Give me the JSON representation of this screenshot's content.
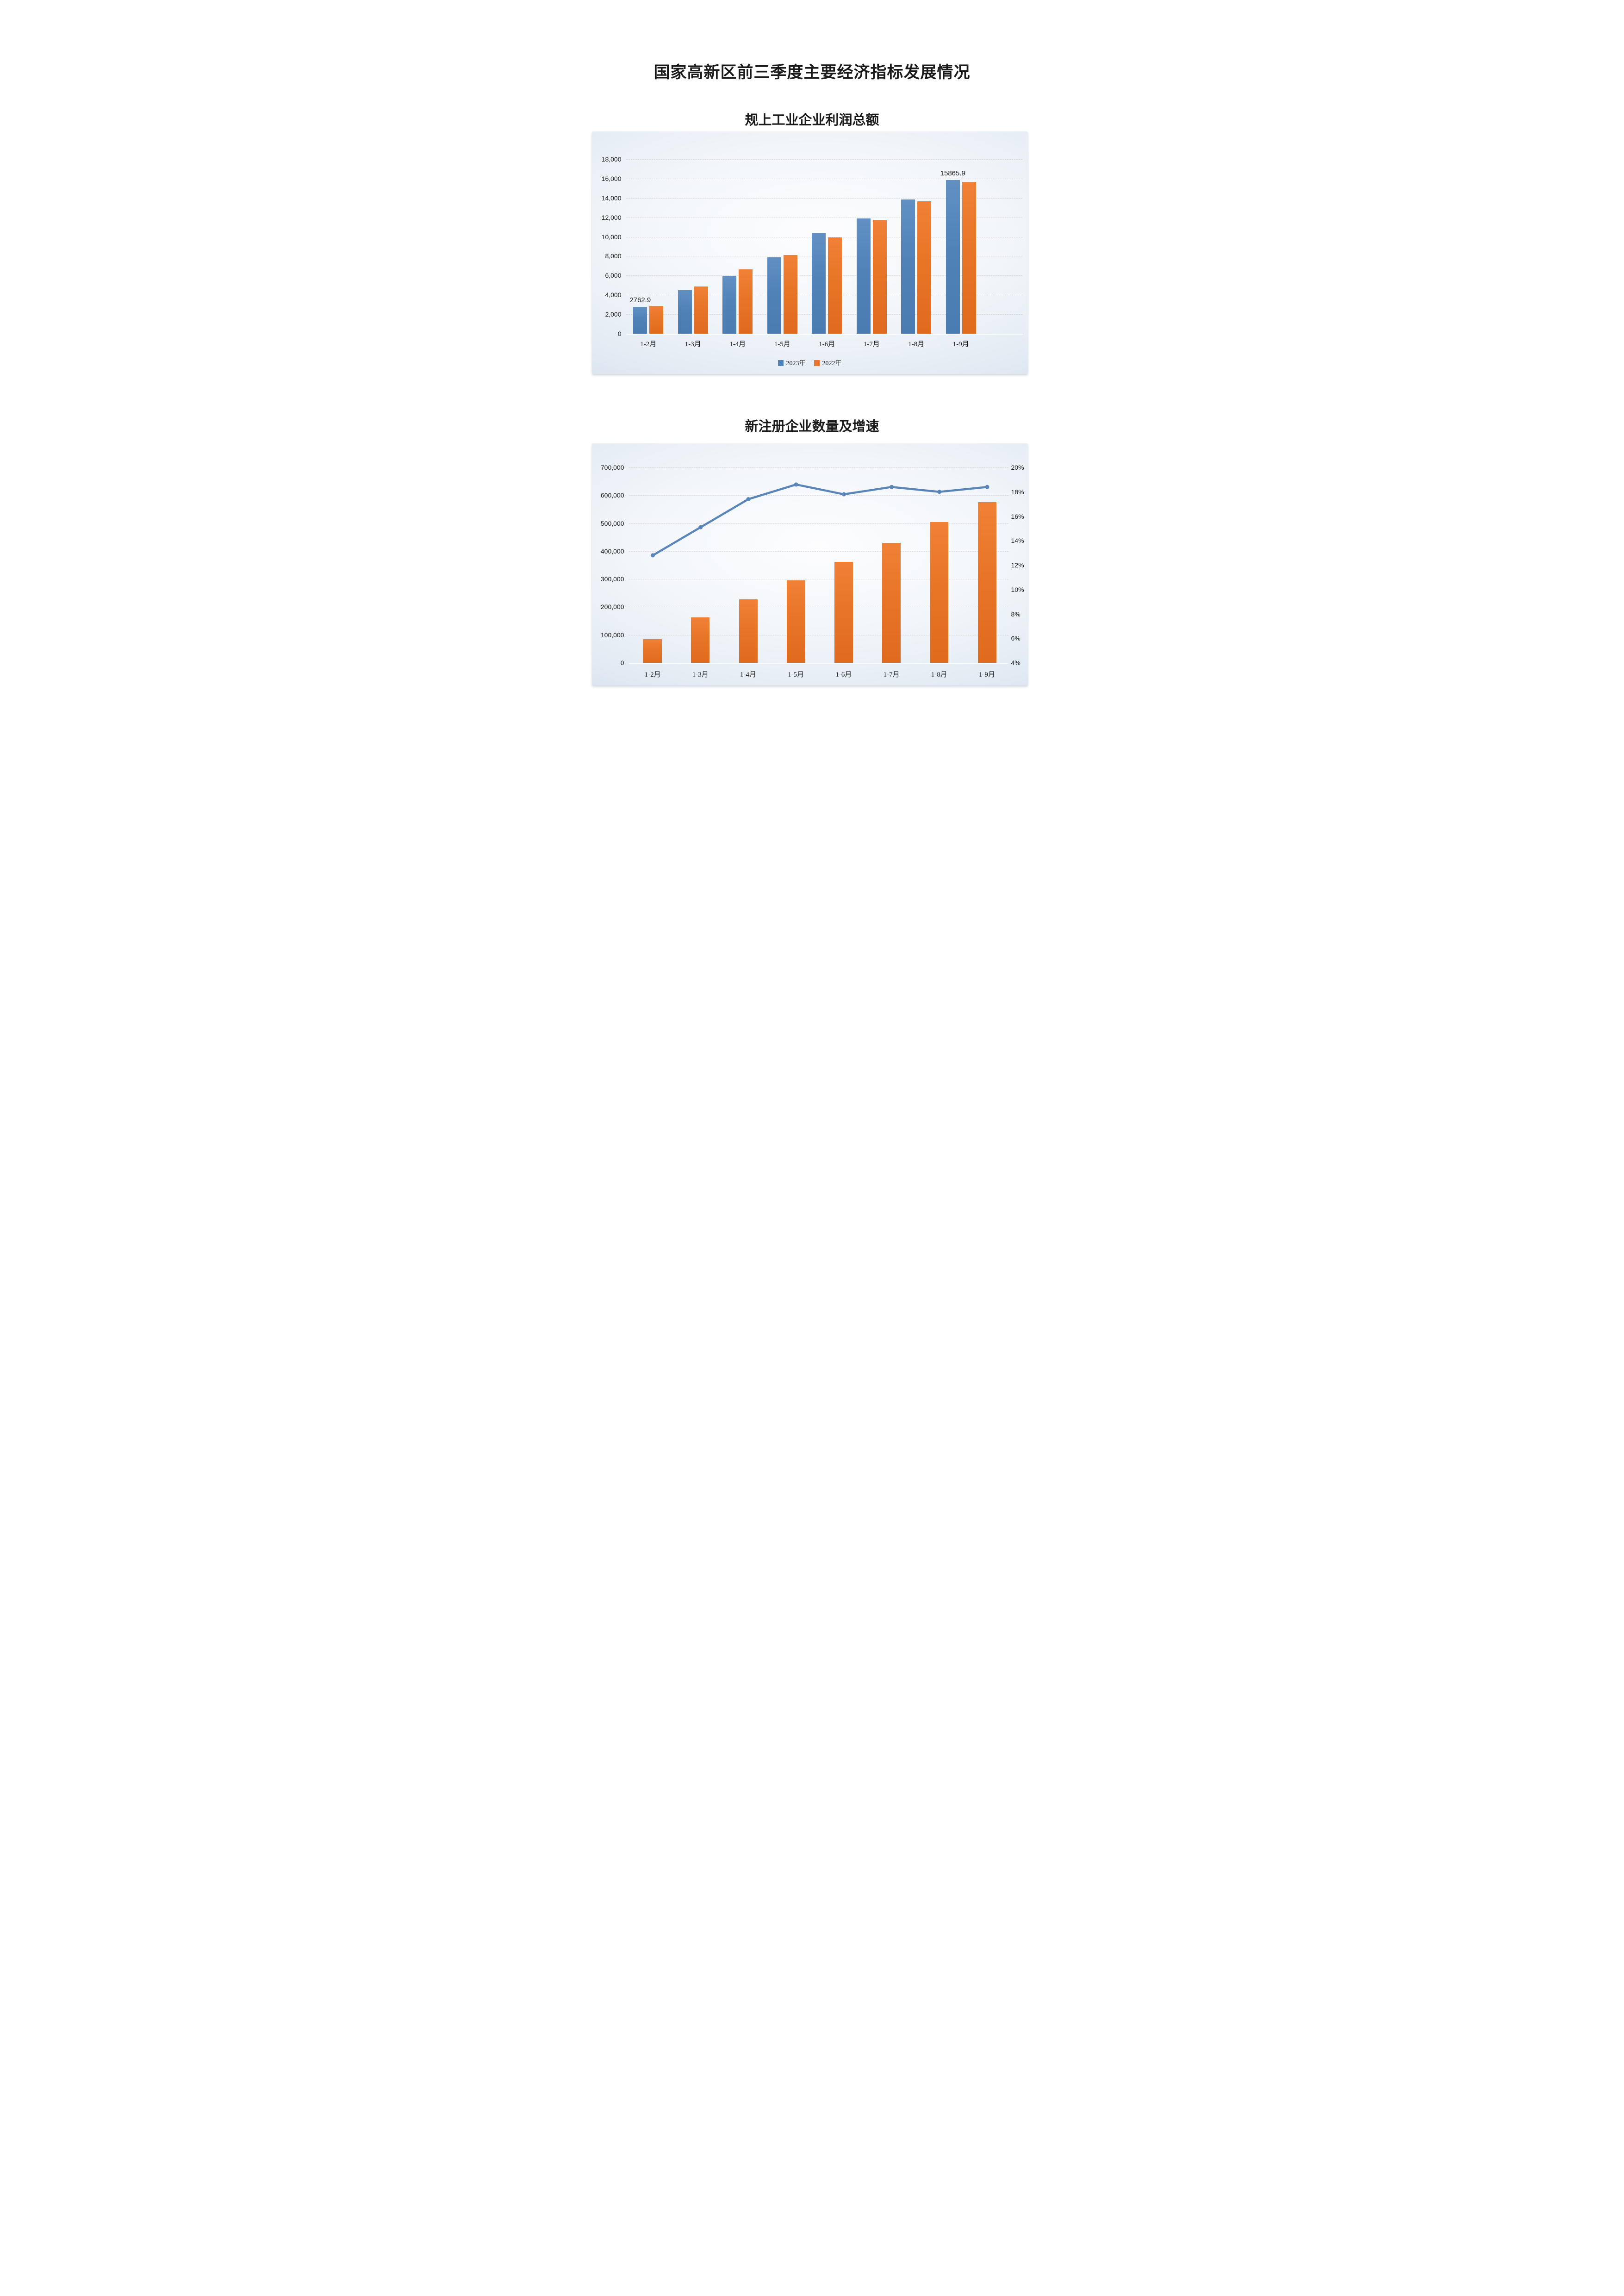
{
  "page": {
    "title": "国家高新区前三季度主要经济指标发展情况"
  },
  "colors": {
    "bar_blue": "#4f82b8",
    "bar_orange": "#e8762c",
    "line_blue": "#5a85b8",
    "text": "#1a1a1a",
    "panel_edge": "#c9d7e8",
    "panel_center": "#fdfdfe",
    "gridline": "#cdbec4"
  },
  "chart_data": [
    {
      "type": "bar",
      "title": "规上工业企业利润总额",
      "categories": [
        "1-2月",
        "1-3月",
        "1-4月",
        "1-5月",
        "1-6月",
        "1-7月",
        "1-8月",
        "1-9月"
      ],
      "series": [
        {
          "name": "2023年",
          "color": "#4f82b8",
          "values": [
            2762.9,
            4480,
            5950,
            7900,
            10400,
            11900,
            13870,
            15865.9
          ]
        },
        {
          "name": "2022年",
          "color": "#e8762c",
          "values": [
            2880,
            4860,
            6630,
            8120,
            9950,
            11760,
            13640,
            15680
          ]
        }
      ],
      "data_labels": [
        {
          "series": 0,
          "category": 0,
          "text": "2762.9"
        },
        {
          "series": 0,
          "category": 7,
          "text": "15865.9"
        }
      ],
      "y_axis": {
        "min": 0,
        "max": 18000,
        "step": 2000,
        "tick_labels": [
          "18,000",
          "16,000",
          "14,000",
          "12,000",
          "10,000",
          "8,000",
          "6,000",
          "4,000",
          "2,000",
          "0"
        ]
      },
      "legend": {
        "position": "bottom",
        "entries": [
          "2023年",
          "2022年"
        ]
      },
      "grid": true
    },
    {
      "type": "bar+line",
      "title": "新注册企业数量及增速",
      "categories": [
        "1-2月",
        "1-3月",
        "1-4月",
        "1-5月",
        "1-6月",
        "1-7月",
        "1-8月",
        "1-9月"
      ],
      "bar_series": {
        "axis": "left",
        "color": "#e8762c",
        "values": [
          84000,
          162000,
          228000,
          295000,
          361000,
          430000,
          505000,
          575000
        ]
      },
      "line_series": {
        "axis": "right",
        "color": "#5a85b8",
        "unit": "%",
        "values": [
          12.8,
          15.1,
          17.4,
          18.6,
          17.8,
          18.4,
          18.0,
          18.4
        ]
      },
      "left_axis": {
        "min": 0,
        "max": 700000,
        "step": 100000,
        "tick_labels": [
          "700,000",
          "600,000",
          "500,000",
          "400,000",
          "300,000",
          "200,000",
          "100,000",
          "0"
        ]
      },
      "right_axis": {
        "min": 4,
        "max": 20,
        "step": 2,
        "tick_labels": [
          "20%",
          "18%",
          "16%",
          "14%",
          "12%",
          "10%",
          "8%",
          "6%",
          "4%"
        ]
      },
      "legend": null,
      "grid": true
    }
  ]
}
